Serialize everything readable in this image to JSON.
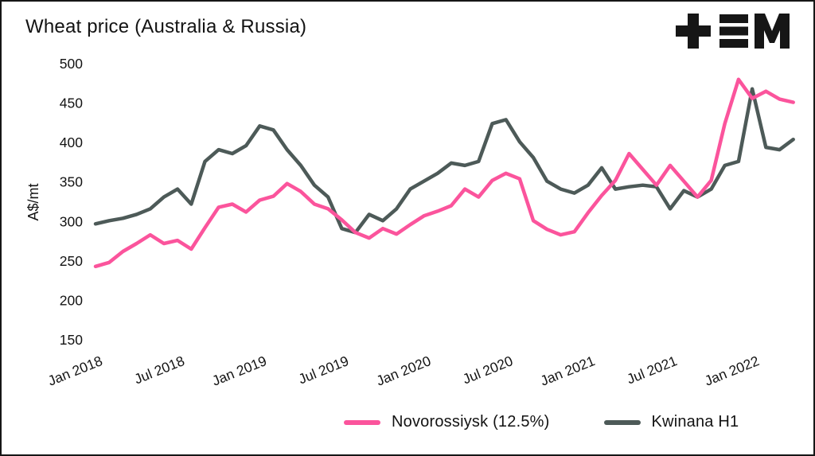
{
  "header": {
    "title": "Wheat price (Australia & Russia)",
    "logo": "tem-logo"
  },
  "chart_data": {
    "type": "line",
    "title": "Wheat price (Australia & Russia)",
    "xlabel": "",
    "ylabel": "A$/mt",
    "ylim": [
      150,
      500
    ],
    "y_ticks": [
      150,
      200,
      250,
      300,
      350,
      400,
      450,
      500
    ],
    "x_tick_labels": [
      "Jan 2018",
      "Jul 2018",
      "Jan 2019",
      "Jul 2019",
      "Jan 2020",
      "Jul 2020",
      "Jan 2021",
      "Jul 2021",
      "Jan 2022"
    ],
    "x_tick_month_indices": [
      0,
      6,
      12,
      18,
      24,
      30,
      36,
      42,
      48
    ],
    "x_interval": "monthly",
    "x_range": "Jan 2018 - Apr 2022",
    "grid": false,
    "legend_position": "bottom",
    "series": [
      {
        "name": "Novorossiysk (12.5%)",
        "color": "#fb549c",
        "values": [
          243,
          248,
          262,
          272,
          283,
          272,
          276,
          265,
          292,
          318,
          322,
          312,
          327,
          332,
          348,
          338,
          322,
          316,
          302,
          286,
          279,
          291,
          284,
          296,
          307,
          313,
          320,
          341,
          331,
          352,
          361,
          354,
          301,
          290,
          283,
          287,
          311,
          333,
          352,
          386,
          366,
          346,
          371,
          351,
          331,
          352,
          424,
          480,
          456,
          465,
          455,
          451
        ]
      },
      {
        "name": "Kwinana H1",
        "color": "#4d5a58",
        "values": [
          297,
          301,
          304,
          309,
          316,
          331,
          341,
          322,
          376,
          391,
          386,
          396,
          421,
          416,
          391,
          371,
          346,
          331,
          291,
          286,
          309,
          301,
          316,
          341,
          351,
          361,
          374,
          371,
          376,
          424,
          429,
          401,
          381,
          351,
          341,
          336,
          346,
          368,
          341,
          344,
          346,
          344,
          316,
          339,
          331,
          341,
          371,
          376,
          468,
          394,
          391,
          404
        ]
      }
    ]
  }
}
